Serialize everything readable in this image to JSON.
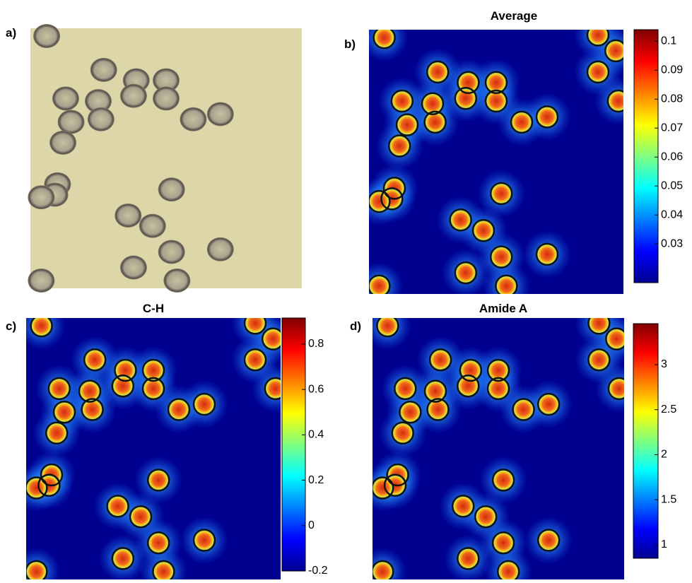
{
  "panels": [
    {
      "label": "a)"
    },
    {
      "label": "b)",
      "title": "Average",
      "colorbar": {
        "lim": [
          0.0166,
          0.104
        ],
        "ticks": [
          0.1,
          0.09,
          0.08,
          0.07,
          0.06,
          0.05,
          0.04,
          0.03
        ]
      }
    },
    {
      "label": "c)",
      "title": "C-H",
      "colorbar": {
        "lim": [
          -0.2,
          0.915
        ],
        "ticks": [
          0.8,
          0.6,
          0.4,
          0.2,
          0,
          -0.2
        ]
      }
    },
    {
      "label": "d)",
      "title": "Amide A",
      "colorbar": {
        "lim": [
          0.85,
          3.455
        ],
        "ticks": [
          3,
          2.5,
          2,
          1.5,
          1
        ]
      }
    }
  ]
}
